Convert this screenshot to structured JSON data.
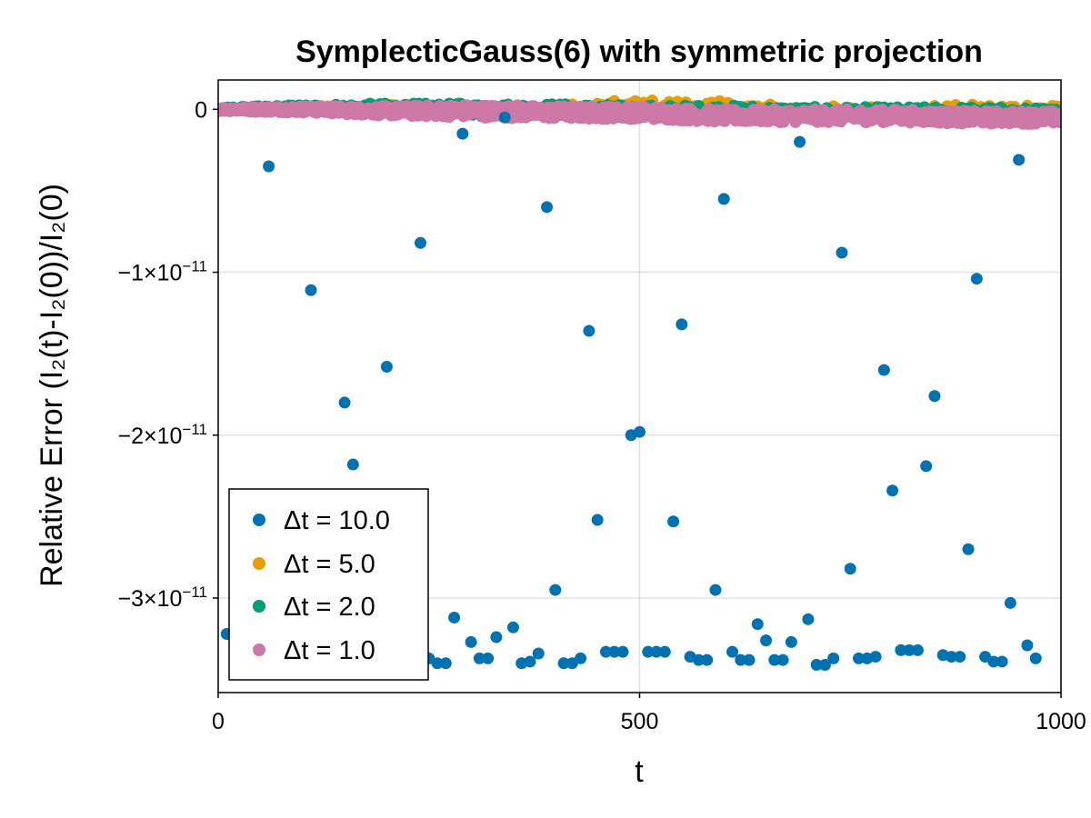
{
  "chart_data": {
    "type": "scatter",
    "title": "SymplecticGauss(6) with symmetric projection",
    "xlabel": "t",
    "ylabel": "Relative Error (I₂(t)-I₂(0))/I₂(0)",
    "xlim": [
      0,
      1000
    ],
    "ylim": [
      -3.58e-11,
      1.8e-12
    ],
    "x_ticks": [
      0,
      500,
      1000
    ],
    "x_tick_labels": [
      "0",
      "500",
      "1000"
    ],
    "y_ticks": [
      0,
      -1e-11,
      -2e-11,
      -3e-11
    ],
    "y_tick_labels": [
      {
        "mantissa": "0",
        "exp": ""
      },
      {
        "mantissa": "−1×10",
        "exp": "−11"
      },
      {
        "mantissa": "−2×10",
        "exp": "−11"
      },
      {
        "mantissa": "−3×10",
        "exp": "−11"
      }
    ],
    "grid": true,
    "legend_position": "bottom-left",
    "series": [
      {
        "name": "Δt = 10.0",
        "color": "#0072B2",
        "step": 10,
        "y": [
          -3.22e-11,
          -3.36e-11,
          -3.38e-11,
          -3.41e-11,
          -3.35e-11,
          -3.5e-12,
          -3.31e-11,
          -3.36e-11,
          -3.37e-11,
          -3.33e-11,
          -1.11e-11,
          -3.37e-11,
          -3.4e-11,
          -3.34e-11,
          -1.8e-11,
          -2.18e-11,
          -3.35e-11,
          -3.39e-11,
          -2.37e-11,
          -1.58e-11,
          -3.31e-11,
          -3.38e-11,
          -2.84e-11,
          -8.2e-12,
          -3.37e-11,
          -3.4e-11,
          -3.4e-11,
          -3.12e-11,
          -1.5e-12,
          -3.27e-11,
          -3.37e-11,
          -3.37e-11,
          -3.24e-11,
          -5e-13,
          -3.18e-11,
          -3.4e-11,
          -3.39e-11,
          -3.34e-11,
          -6e-12,
          -2.95e-11,
          -3.4e-11,
          -3.4e-11,
          -3.37e-11,
          -1.36e-11,
          -2.52e-11,
          -3.33e-11,
          -3.33e-11,
          -3.33e-11,
          -2e-11,
          -1.98e-11,
          -3.33e-11,
          -3.33e-11,
          -3.33e-11,
          -2.53e-11,
          -1.32e-11,
          -3.36e-11,
          -3.38e-11,
          -3.38e-11,
          -2.95e-11,
          -5.5e-12,
          -3.33e-11,
          -3.38e-11,
          -3.38e-11,
          -3.16e-11,
          -3.26e-11,
          -3.38e-11,
          -3.38e-11,
          -3.27e-11,
          -2e-12,
          -3.13e-11,
          -3.41e-11,
          -3.41e-11,
          -3.37e-11,
          -8.8e-12,
          -2.82e-11,
          -3.37e-11,
          -3.37e-11,
          -3.36e-11,
          -1.6e-11,
          -2.34e-11,
          -3.32e-11,
          -3.32e-11,
          -3.32e-11,
          -2.19e-11,
          -1.76e-11,
          -3.35e-11,
          -3.36e-11,
          -3.36e-11,
          -2.7e-11,
          -1.04e-11,
          -3.36e-11,
          -3.39e-11,
          -3.39e-11,
          -3.03e-11,
          -3.1e-12,
          -3.29e-11,
          -3.37e-11
        ]
      },
      {
        "name": "Δt = 5.0",
        "color": "#E69F00",
        "step": 5,
        "envelope": {
          "t": [
            0,
            100,
            200,
            300,
            400,
            500,
            600,
            700,
            800,
            900,
            1000
          ],
          "center": [
            0.0,
            0.0,
            1e-13,
            1e-13,
            0.0,
            3e-13,
            2e-13,
            -1e-13,
            -1e-13,
            0.0,
            1e-13
          ],
          "amplitude": 3e-13
        }
      },
      {
        "name": "Δt = 2.0",
        "color": "#009E73",
        "step": 2,
        "envelope": {
          "t": [
            0,
            100,
            200,
            300,
            400,
            500,
            600,
            700,
            800,
            900,
            1000
          ],
          "center": [
            0.0,
            1e-13,
            1e-13,
            0.0,
            0.0,
            -1e-13,
            -1e-13,
            -2e-13,
            -2e-13,
            -2e-13,
            -3e-13
          ],
          "amplitude": 3.5e-13
        }
      },
      {
        "name": "Δt = 1.0",
        "color": "#CC79A7",
        "step": 1,
        "envelope": {
          "t": [
            0,
            100,
            200,
            300,
            400,
            500,
            600,
            700,
            800,
            900,
            1000
          ],
          "center": [
            0.0,
            0.0,
            -1e-13,
            -1e-13,
            -2e-13,
            -2e-13,
            -4e-13,
            -4e-13,
            -4e-13,
            -5e-13,
            -5e-13
          ],
          "amplitude": 4e-13
        }
      }
    ]
  }
}
